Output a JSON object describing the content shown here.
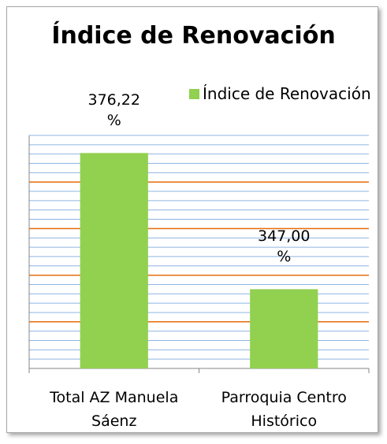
{
  "chart_data": {
    "type": "bar",
    "title": "Índice de Renovación",
    "categories": [
      "Total AZ Manuela Sáenz",
      "Parroquia Centro Histórico"
    ],
    "series": [
      {
        "name": "Índice de Renovación",
        "color": "#92d050",
        "values": [
          376.22,
          347.0
        ],
        "value_labels": [
          "376,22 %",
          "347,00 %"
        ]
      }
    ],
    "ylim": [
      330,
      380
    ],
    "yticks": [
      330,
      340,
      350,
      360,
      370,
      380
    ],
    "minor_yticks": [
      332,
      334,
      336,
      338,
      342,
      344,
      346,
      348,
      352,
      354,
      356,
      358,
      362,
      364,
      366,
      368,
      372,
      374,
      376,
      378
    ],
    "grid_color": "#e46c0a",
    "minor_grid_color": "#8eb4e3",
    "legend": "top"
  }
}
